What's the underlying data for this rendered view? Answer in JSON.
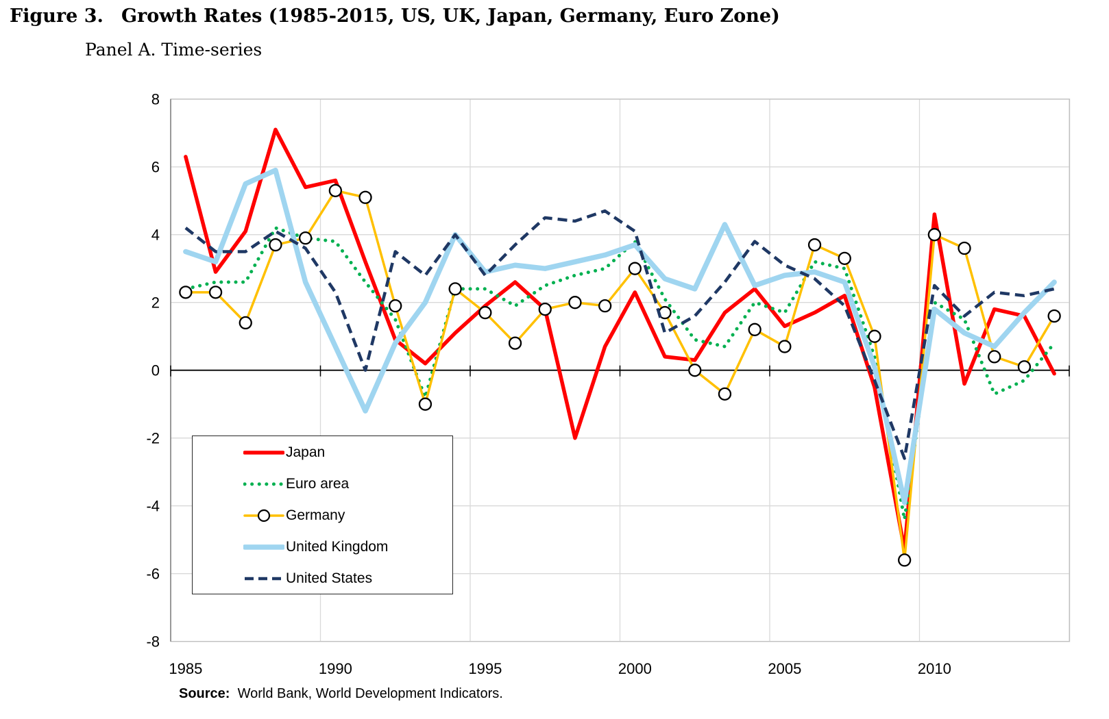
{
  "figure": {
    "label": "Figure 3.",
    "title": "Growth Rates (1985-2015, US, UK, Japan, Germany, Euro Zone)",
    "panel": "Panel A. Time-series"
  },
  "source": {
    "label": "Source:",
    "text": "World Bank, World Development Indicators."
  },
  "chart_data": {
    "type": "line",
    "title": "",
    "xlabel": "",
    "ylabel": "",
    "ylim": [
      -8,
      8
    ],
    "y_ticks": [
      8,
      6,
      4,
      2,
      0,
      -2,
      -4,
      -6,
      -8
    ],
    "x_ticks": [
      1985,
      1990,
      1995,
      2000,
      2005,
      2010
    ],
    "x": [
      1985,
      1986,
      1987,
      1988,
      1989,
      1990,
      1991,
      1992,
      1993,
      1994,
      1995,
      1996,
      1997,
      1998,
      1999,
      2000,
      2001,
      2002,
      2003,
      2004,
      2005,
      2006,
      2007,
      2008,
      2009,
      2010,
      2011,
      2012,
      2013,
      2014
    ],
    "grid": true,
    "legend_position": "inside lower-left",
    "colors": {
      "grid": "#d9d9d9",
      "axis": "#000000",
      "border": "#bfbfbf",
      "left_border": "#7f7f7f"
    },
    "series": [
      {
        "name": "Japan",
        "color": "#ff0000",
        "style": "solid",
        "width": 5.5,
        "values": [
          6.3,
          2.9,
          4.1,
          7.1,
          5.4,
          5.6,
          3.2,
          0.9,
          0.2,
          1.1,
          1.9,
          2.6,
          1.8,
          -2.0,
          0.7,
          2.3,
          0.4,
          0.3,
          1.7,
          2.4,
          1.3,
          1.7,
          2.2,
          -0.5,
          -5.3,
          4.6,
          -0.4,
          1.8,
          1.6,
          -0.1
        ]
      },
      {
        "name": "Euro area",
        "color": "#00b050",
        "style": "dotted",
        "width": 5,
        "values": [
          2.4,
          2.6,
          2.6,
          4.2,
          3.9,
          3.8,
          2.6,
          1.5,
          -0.8,
          2.4,
          2.4,
          1.9,
          2.5,
          2.8,
          3.0,
          3.8,
          2.1,
          0.9,
          0.7,
          2.0,
          1.7,
          3.2,
          3.0,
          0.4,
          -4.4,
          2.0,
          1.5,
          -0.7,
          -0.3,
          0.8
        ]
      },
      {
        "name": "Germany",
        "color": "#ffc000",
        "style": "marker",
        "width": 3.5,
        "values": [
          2.3,
          2.3,
          1.4,
          3.7,
          3.9,
          5.3,
          5.1,
          1.9,
          -1.0,
          2.4,
          1.7,
          0.8,
          1.8,
          2.0,
          1.9,
          3.0,
          1.7,
          0.0,
          -0.7,
          1.2,
          0.7,
          3.7,
          3.3,
          1.0,
          -5.6,
          4.0,
          3.6,
          0.4,
          0.1,
          1.6
        ]
      },
      {
        "name": "United Kingdom",
        "color": "#9fd5f0",
        "style": "solid",
        "width": 7.5,
        "values": [
          3.5,
          3.2,
          5.5,
          5.9,
          2.6,
          0.7,
          -1.2,
          0.8,
          2.0,
          4.0,
          2.9,
          3.1,
          3.0,
          3.2,
          3.4,
          3.7,
          2.7,
          2.4,
          4.3,
          2.5,
          2.8,
          2.9,
          2.6,
          0.1,
          -3.9,
          1.8,
          1.1,
          0.7,
          1.7,
          2.6
        ]
      },
      {
        "name": "United States",
        "color": "#1f3864",
        "style": "dashed",
        "width": 4.5,
        "values": [
          4.2,
          3.5,
          3.5,
          4.1,
          3.6,
          2.3,
          0.0,
          3.5,
          2.8,
          4.0,
          2.8,
          3.7,
          4.5,
          4.4,
          4.7,
          4.1,
          1.1,
          1.6,
          2.6,
          3.8,
          3.1,
          2.7,
          1.9,
          -0.3,
          -2.6,
          2.5,
          1.6,
          2.3,
          2.2,
          2.4
        ]
      }
    ]
  }
}
